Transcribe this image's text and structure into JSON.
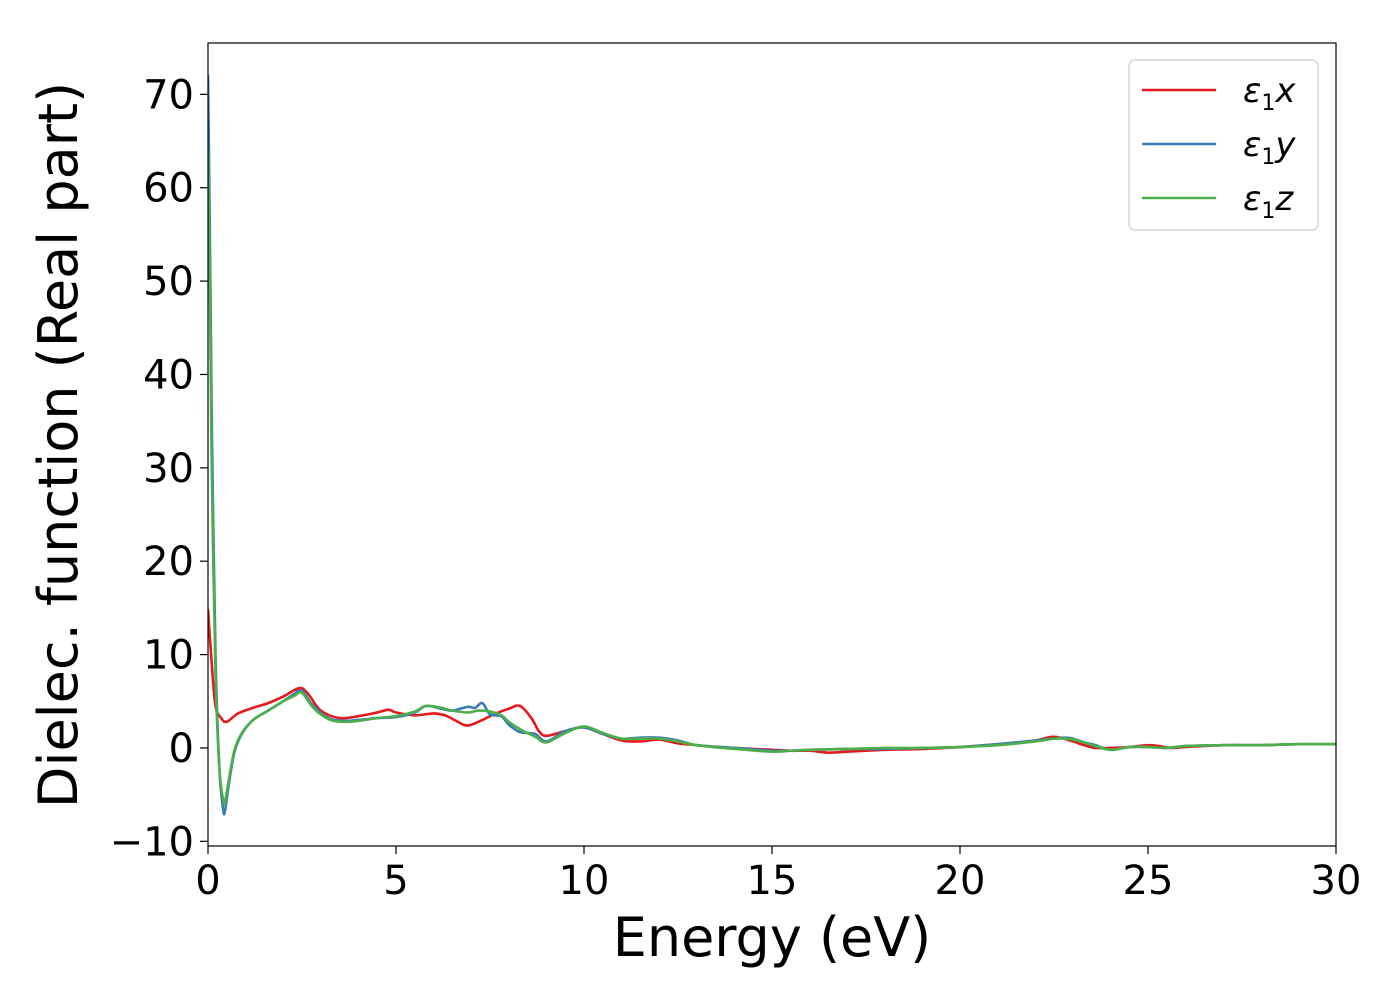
{
  "chart_data": {
    "type": "line",
    "xlabel": "Energy (eV)",
    "ylabel": "Dielec. function (Real part)",
    "xlim": [
      0,
      30
    ],
    "ylim": [
      -10.5,
      75.5
    ],
    "xticks": [
      0,
      5,
      10,
      15,
      20,
      25,
      30
    ],
    "yticks": [
      -10,
      0,
      10,
      20,
      30,
      40,
      50,
      60,
      70
    ],
    "xtick_labels": [
      "0",
      "5",
      "10",
      "15",
      "20",
      "25",
      "30"
    ],
    "ytick_labels": [
      "−10",
      "0",
      "10",
      "20",
      "30",
      "40",
      "50",
      "60",
      "70"
    ],
    "grid": false,
    "legend_position": "top-right",
    "series": [
      {
        "name": "ε₁x",
        "legend": {
          "base": "ε",
          "sub": "1",
          "comp": "x"
        },
        "color": "#e41a1c",
        "x": [
          0,
          0.1,
          0.2,
          0.35,
          0.5,
          0.8,
          1.2,
          1.6,
          2.0,
          2.3,
          2.5,
          2.7,
          3.0,
          3.5,
          4.0,
          4.5,
          4.8,
          5.0,
          5.5,
          6.0,
          6.3,
          6.6,
          6.9,
          7.3,
          7.6,
          8.0,
          8.3,
          8.6,
          8.8,
          9.0,
          9.5,
          10.0,
          10.5,
          11.0,
          11.5,
          12.0,
          12.5,
          13.0,
          13.5,
          14.0,
          15.0,
          15.5,
          16.0,
          16.5,
          17.0,
          17.5,
          18.0,
          19.0,
          20.0,
          21.0,
          22.0,
          22.5,
          23.0,
          23.3,
          23.6,
          24.0,
          24.5,
          25.0,
          25.3,
          25.6,
          26.0,
          27.0,
          28.0,
          29.0,
          30.0
        ],
        "y": [
          14.8,
          9.0,
          4.5,
          3.2,
          2.8,
          3.7,
          4.3,
          4.8,
          5.5,
          6.2,
          6.4,
          5.6,
          4.0,
          3.2,
          3.4,
          3.8,
          4.1,
          3.8,
          3.5,
          3.7,
          3.5,
          2.9,
          2.4,
          3.0,
          3.6,
          4.2,
          4.5,
          3.2,
          1.8,
          1.3,
          1.8,
          2.2,
          1.5,
          0.8,
          0.7,
          0.9,
          0.5,
          0.3,
          0.1,
          0.0,
          -0.2,
          -0.3,
          -0.3,
          -0.5,
          -0.4,
          -0.3,
          -0.2,
          -0.1,
          0.1,
          0.4,
          0.8,
          1.2,
          0.7,
          0.3,
          0.0,
          0.0,
          0.1,
          0.3,
          0.2,
          0.0,
          0.1,
          0.3,
          0.3,
          0.4,
          0.4
        ]
      },
      {
        "name": "ε₁y",
        "legend": {
          "base": "ε",
          "sub": "1",
          "comp": "y"
        },
        "color": "#377eb8",
        "x": [
          0,
          0.05,
          0.1,
          0.2,
          0.3,
          0.4,
          0.45,
          0.55,
          0.7,
          0.9,
          1.2,
          1.6,
          2.0,
          2.3,
          2.5,
          2.8,
          3.2,
          3.6,
          4.0,
          4.5,
          5.0,
          5.5,
          5.8,
          6.2,
          6.5,
          6.9,
          7.1,
          7.3,
          7.5,
          7.8,
          8.0,
          8.3,
          8.7,
          9.0,
          9.5,
          10.0,
          10.5,
          11.0,
          11.5,
          12.0,
          12.5,
          13.0,
          14.0,
          15.0,
          15.5,
          16.0,
          17.0,
          18.0,
          19.0,
          20.0,
          21.0,
          22.0,
          22.5,
          22.8,
          23.0,
          23.3,
          23.6,
          24.0,
          24.5,
          25.0,
          25.5,
          26.0,
          27.0,
          28.0,
          29.0,
          30.0
        ],
        "y": [
          72.0,
          55.0,
          35.0,
          10.0,
          -2.0,
          -6.5,
          -6.8,
          -4.0,
          -0.5,
          1.5,
          3.0,
          4.0,
          5.0,
          5.8,
          6.1,
          4.5,
          3.2,
          2.9,
          3.0,
          3.2,
          3.3,
          3.8,
          4.5,
          4.2,
          4.0,
          4.4,
          4.3,
          4.8,
          3.6,
          3.4,
          2.5,
          1.7,
          1.5,
          0.7,
          1.8,
          2.2,
          1.5,
          1.0,
          1.1,
          1.1,
          0.8,
          0.3,
          0.0,
          -0.3,
          -0.3,
          -0.2,
          -0.1,
          -0.1,
          0.0,
          0.1,
          0.4,
          0.8,
          1.0,
          1.1,
          1.0,
          0.6,
          0.3,
          -0.2,
          0.1,
          0.1,
          0.0,
          0.2,
          0.3,
          0.3,
          0.4,
          0.4
        ]
      },
      {
        "name": "ε₁z",
        "legend": {
          "base": "ε",
          "sub": "1",
          "comp": "z"
        },
        "color": "#4daf4a",
        "x": [
          0,
          0.05,
          0.1,
          0.2,
          0.3,
          0.4,
          0.45,
          0.55,
          0.7,
          0.9,
          1.2,
          1.6,
          2.0,
          2.3,
          2.5,
          2.8,
          3.2,
          3.6,
          4.0,
          4.5,
          5.0,
          5.5,
          5.8,
          6.2,
          6.5,
          6.9,
          7.2,
          7.5,
          7.8,
          8.0,
          8.3,
          8.7,
          9.0,
          9.5,
          10.0,
          10.5,
          11.0,
          11.5,
          12.0,
          12.5,
          13.0,
          14.0,
          15.0,
          15.5,
          16.0,
          17.0,
          18.0,
          19.0,
          20.0,
          21.0,
          22.0,
          22.5,
          22.8,
          23.0,
          23.3,
          23.6,
          24.0,
          24.5,
          25.0,
          25.5,
          26.0,
          27.0,
          28.0,
          29.0,
          30.0
        ],
        "y": [
          64.0,
          50.0,
          30.0,
          8.0,
          -2.0,
          -5.5,
          -5.8,
          -3.5,
          -0.3,
          1.6,
          3.0,
          4.0,
          5.0,
          5.6,
          5.9,
          4.3,
          3.1,
          2.8,
          2.9,
          3.2,
          3.4,
          3.9,
          4.5,
          4.3,
          4.0,
          3.8,
          4.0,
          3.9,
          3.5,
          2.8,
          2.0,
          1.2,
          0.6,
          1.6,
          2.3,
          1.6,
          1.0,
          1.0,
          1.0,
          0.7,
          0.3,
          -0.1,
          -0.4,
          -0.3,
          -0.2,
          -0.1,
          0.0,
          0.0,
          0.1,
          0.3,
          0.7,
          1.0,
          1.0,
          0.9,
          0.6,
          0.2,
          -0.2,
          0.1,
          0.1,
          0.0,
          0.2,
          0.3,
          0.3,
          0.4,
          0.4
        ]
      }
    ]
  }
}
